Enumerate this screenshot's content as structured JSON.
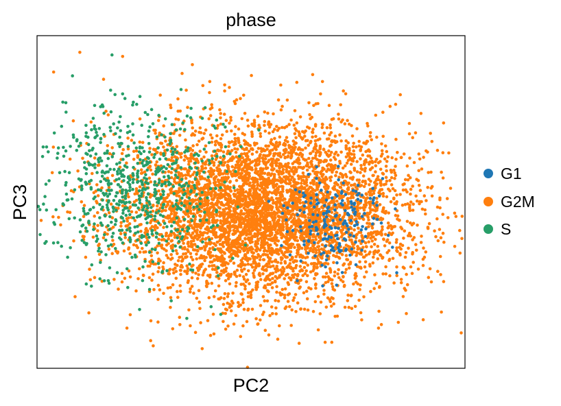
{
  "chart_data": {
    "type": "scatter",
    "title": "phase",
    "xlabel": "PC2",
    "ylabel": "PC3",
    "xlim": [
      -4,
      4
    ],
    "ylim": [
      -4,
      4
    ],
    "grid": false,
    "ticks": false,
    "legend_position": "right",
    "series": [
      {
        "name": "G2M",
        "color": "#ff7f0e",
        "n": 5200,
        "cluster": {
          "cx": 0.3,
          "cy": -0.2,
          "sx": 1.35,
          "sy": 1.05
        },
        "outliers": [
          [
            -3.2,
            3.6
          ],
          [
            -2.4,
            3.5
          ],
          [
            0.5,
            -3.3
          ],
          [
            0.9,
            -3.4
          ],
          [
            3.6,
            1.9
          ],
          [
            3.3,
            1.2
          ],
          [
            1.3,
            2.6
          ],
          [
            -0.9,
            2.8
          ],
          [
            2.6,
            2.3
          ],
          [
            -2.7,
            -0.6
          ],
          [
            -1.5,
            -2.3
          ],
          [
            0.0,
            -2.3
          ]
        ]
      },
      {
        "name": "S",
        "color": "#279e68",
        "n": 700,
        "cluster": {
          "cx": -2.2,
          "cy": 0.3,
          "sx": 0.85,
          "sy": 1.0
        },
        "outliers": [
          [
            -3.6,
            1.3
          ],
          [
            -3.5,
            1.1
          ],
          [
            -2.4,
            2.6
          ],
          [
            -2.2,
            2.4
          ],
          [
            -1.6,
            2.0
          ],
          [
            -1.2,
            -2.8
          ],
          [
            -2.5,
            -1.7
          ],
          [
            -2.8,
            -1.2
          ]
        ]
      },
      {
        "name": "G1",
        "color": "#1f77b4",
        "n": 190,
        "cluster": {
          "cx": 1.6,
          "cy": -0.5,
          "sx": 0.45,
          "sy": 0.55
        },
        "outliers": [
          [
            1.6,
            -2.0
          ],
          [
            2.3,
            0.1
          ],
          [
            2.0,
            0.4
          ],
          [
            1.2,
            -1.3
          ]
        ]
      }
    ]
  }
}
